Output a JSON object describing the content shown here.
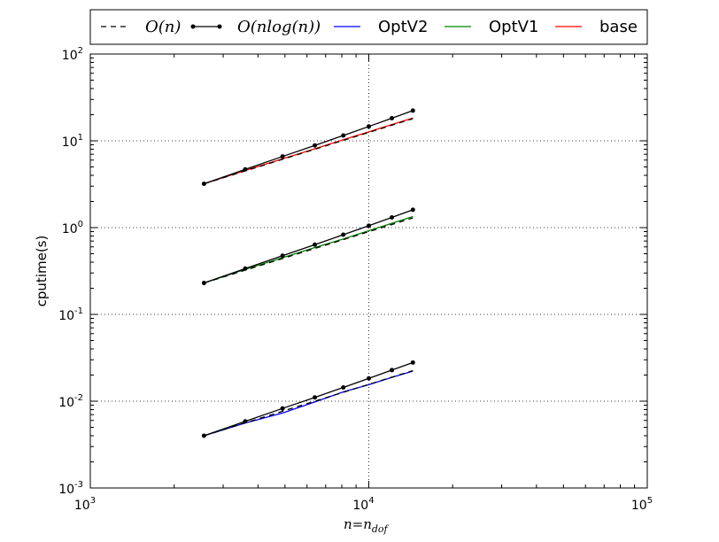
{
  "chart_data": {
    "type": "line",
    "title": "",
    "xlabel": "n=n_dof",
    "xlabel_main": "n=n",
    "xlabel_sub": "dof",
    "ylabel": "cputime(s)",
    "xscale": "log",
    "yscale": "log",
    "xlim": [
      1000,
      100000
    ],
    "ylim": [
      0.001,
      100
    ],
    "grid": true,
    "legend_position": "top",
    "x_ticks": [
      {
        "value": 1000,
        "base": "10",
        "exp": "3"
      },
      {
        "value": 10000,
        "base": "10",
        "exp": "4"
      },
      {
        "value": 100000,
        "base": "10",
        "exp": "5"
      }
    ],
    "y_ticks": [
      {
        "value": 0.001,
        "base": "10",
        "exp": "-3"
      },
      {
        "value": 0.01,
        "base": "10",
        "exp": "-2"
      },
      {
        "value": 0.1,
        "base": "10",
        "exp": "-1"
      },
      {
        "value": 1,
        "base": "10",
        "exp": "0"
      },
      {
        "value": 10,
        "base": "10",
        "exp": "1"
      },
      {
        "value": 100,
        "base": "10",
        "exp": "2"
      }
    ],
    "series": [
      {
        "name": "base",
        "color": "#ff0000",
        "style": "solid",
        "marker": "none",
        "x": [
          2560,
          3600,
          4900,
          6400,
          8100,
          10000,
          12100,
          14400
        ],
        "y": [
          3.2,
          4.55,
          6.2,
          8.1,
          10.3,
          12.7,
          15.4,
          18.3
        ]
      },
      {
        "name": "OptV1",
        "color": "#008000",
        "style": "solid",
        "marker": "none",
        "x": [
          2560,
          3600,
          4900,
          6400,
          8100,
          10000,
          12100,
          14400
        ],
        "y": [
          0.23,
          0.33,
          0.45,
          0.59,
          0.74,
          0.92,
          1.12,
          1.34
        ]
      },
      {
        "name": "OptV2",
        "color": "#0000ff",
        "style": "solid",
        "marker": "none",
        "x": [
          2560,
          3600,
          4900,
          6400,
          8100,
          10000,
          12100,
          14400
        ],
        "y": [
          0.004,
          0.0056,
          0.0073,
          0.0098,
          0.0128,
          0.0155,
          0.0188,
          0.0222
        ]
      },
      {
        "name": "O(n)",
        "color": "#000000",
        "style": "dashed",
        "marker": "none",
        "group": "base",
        "x": [
          2560,
          3600,
          4900,
          6400,
          8100,
          10000,
          12100,
          14400
        ],
        "y": [
          3.2,
          4.5,
          6.125,
          8.0,
          10.125,
          12.5,
          15.125,
          18.0
        ]
      },
      {
        "name": "O(n)",
        "color": "#000000",
        "style": "dashed",
        "marker": "none",
        "group": "OptV1",
        "x": [
          2560,
          3600,
          4900,
          6400,
          8100,
          10000,
          12100,
          14400
        ],
        "y": [
          0.23,
          0.3234,
          0.4402,
          0.575,
          0.7277,
          0.8984,
          1.0871,
          1.2938
        ]
      },
      {
        "name": "O(n)",
        "color": "#000000",
        "style": "dashed",
        "marker": "none",
        "group": "OptV2",
        "x": [
          2560,
          3600,
          4900,
          6400,
          8100,
          10000,
          12100,
          14400
        ],
        "y": [
          0.004,
          0.005625,
          0.007656,
          0.01,
          0.012656,
          0.015625,
          0.018906,
          0.0225
        ]
      },
      {
        "name": "O(nlog(n))",
        "color": "#000000",
        "style": "solid",
        "marker": "dot",
        "group": "base",
        "x": [
          2560,
          3600,
          4900,
          6400,
          8100,
          10000,
          12100,
          14400
        ],
        "y": [
          3.2,
          4.69,
          6.6,
          8.85,
          11.52,
          14.63,
          18.22,
          22.32
        ]
      },
      {
        "name": "O(nlog(n))",
        "color": "#000000",
        "style": "solid",
        "marker": "dot",
        "group": "OptV1",
        "x": [
          2560,
          3600,
          4900,
          6400,
          8100,
          10000,
          12100,
          14400
        ],
        "y": [
          0.23,
          0.337,
          0.474,
          0.636,
          0.828,
          1.052,
          1.31,
          1.604
        ]
      },
      {
        "name": "O(nlog(n))",
        "color": "#000000",
        "style": "solid",
        "marker": "dot",
        "group": "OptV2",
        "x": [
          2560,
          3600,
          4900,
          6400,
          8100,
          10000,
          12100,
          14400
        ],
        "y": [
          0.004,
          0.00586,
          0.00825,
          0.01106,
          0.0144,
          0.0183,
          0.0228,
          0.0279
        ]
      }
    ],
    "legend": [
      {
        "label": "O(n)",
        "color": "#000000",
        "style": "dashed",
        "marker": "none",
        "math": true
      },
      {
        "label": "O(nlog(n))",
        "color": "#000000",
        "style": "solid",
        "marker": "dot",
        "math": true
      },
      {
        "label": "OptV2",
        "color": "#0000ff",
        "style": "solid",
        "marker": "none",
        "math": false
      },
      {
        "label": "OptV1",
        "color": "#008000",
        "style": "solid",
        "marker": "none",
        "math": false
      },
      {
        "label": "base",
        "color": "#ff0000",
        "style": "solid",
        "marker": "none",
        "math": false
      }
    ]
  }
}
